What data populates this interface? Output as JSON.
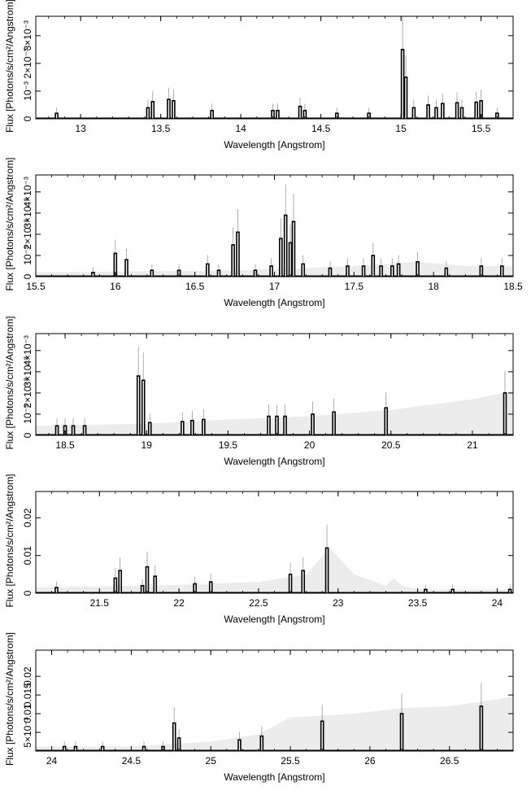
{
  "chart_data": [
    {
      "type": "line",
      "xlabel": "Wavelength [Angstrom]",
      "ylabel": "Flux [Photons/s/cm²/Angstrom]",
      "xlim": [
        12.72,
        15.7
      ],
      "ylim": [
        0,
        0.0037
      ],
      "x_ticks": [
        {
          "value": 13,
          "label": "13"
        },
        {
          "value": 13.5,
          "label": "13.5"
        },
        {
          "value": 14,
          "label": "14"
        },
        {
          "value": 14.5,
          "label": "14.5"
        },
        {
          "value": 15,
          "label": "15"
        },
        {
          "value": 15.5,
          "label": "15.5"
        }
      ],
      "y_ticks": [
        {
          "value": 0,
          "label": "0"
        },
        {
          "value": 0.001,
          "label": "10⁻³"
        },
        {
          "value": 0.002,
          "label": "2×10⁻³"
        },
        {
          "value": 0.003,
          "label": "3×10⁻³"
        }
      ],
      "band": {
        "x": [
          12.72,
          15.7
        ],
        "y": [
          5e-05,
          5e-05
        ]
      },
      "peaks": [
        {
          "x": 12.85,
          "y": 0.0002
        },
        {
          "x": 13.42,
          "y": 0.0004
        },
        {
          "x": 13.45,
          "y": 0.00062
        },
        {
          "x": 13.55,
          "y": 0.0007
        },
        {
          "x": 13.58,
          "y": 0.00065
        },
        {
          "x": 13.82,
          "y": 0.0003
        },
        {
          "x": 14.2,
          "y": 0.0003
        },
        {
          "x": 14.23,
          "y": 0.0003
        },
        {
          "x": 14.37,
          "y": 0.00045
        },
        {
          "x": 14.4,
          "y": 0.0003
        },
        {
          "x": 14.6,
          "y": 0.0002
        },
        {
          "x": 14.8,
          "y": 0.0002
        },
        {
          "x": 15.01,
          "y": 0.0025
        },
        {
          "x": 15.03,
          "y": 0.0015
        },
        {
          "x": 15.08,
          "y": 0.0004
        },
        {
          "x": 15.17,
          "y": 0.0005
        },
        {
          "x": 15.22,
          "y": 0.0004
        },
        {
          "x": 15.26,
          "y": 0.00055
        },
        {
          "x": 15.35,
          "y": 0.00058
        },
        {
          "x": 15.38,
          "y": 0.0004
        },
        {
          "x": 15.47,
          "y": 0.0006
        },
        {
          "x": 15.5,
          "y": 0.00065
        },
        {
          "x": 15.6,
          "y": 0.0002
        }
      ]
    },
    {
      "type": "line",
      "xlabel": "Wavelength [Angstrom]",
      "ylabel": "Flux [Photons/s/cm²/Angstrom]",
      "xlim": [
        15.5,
        18.5
      ],
      "ylim": [
        0,
        0.0048
      ],
      "x_ticks": [
        {
          "value": 15.5,
          "label": "15.5"
        },
        {
          "value": 16,
          "label": "16"
        },
        {
          "value": 16.5,
          "label": "16.5"
        },
        {
          "value": 17,
          "label": "17"
        },
        {
          "value": 17.5,
          "label": "17.5"
        },
        {
          "value": 18,
          "label": "18"
        },
        {
          "value": 18.5,
          "label": "18.5"
        }
      ],
      "y_ticks": [
        {
          "value": 0,
          "label": "0"
        },
        {
          "value": 0.001,
          "label": "10⁻³"
        },
        {
          "value": 0.002,
          "label": "2×10⁻³"
        },
        {
          "value": 0.003,
          "label": "3×10⁻³"
        },
        {
          "value": 0.004,
          "label": "4×10⁻³"
        }
      ],
      "band": {
        "x": [
          15.5,
          16.8,
          17.5,
          17.9,
          18.2,
          18.5
        ],
        "y": [
          0.0002,
          0.0003,
          0.0005,
          0.0007,
          0.0005,
          0.0005
        ]
      },
      "peaks": [
        {
          "x": 15.86,
          "y": 0.0002
        },
        {
          "x": 16.0,
          "y": 0.0011
        },
        {
          "x": 16.07,
          "y": 0.0008
        },
        {
          "x": 16.23,
          "y": 0.0003
        },
        {
          "x": 16.4,
          "y": 0.0003
        },
        {
          "x": 16.58,
          "y": 0.0006
        },
        {
          "x": 16.65,
          "y": 0.0003
        },
        {
          "x": 16.74,
          "y": 0.0015
        },
        {
          "x": 16.77,
          "y": 0.0021
        },
        {
          "x": 16.88,
          "y": 0.0003
        },
        {
          "x": 16.98,
          "y": 0.0005
        },
        {
          "x": 17.04,
          "y": 0.0018
        },
        {
          "x": 17.07,
          "y": 0.0029
        },
        {
          "x": 17.1,
          "y": 0.0016
        },
        {
          "x": 17.12,
          "y": 0.0026
        },
        {
          "x": 17.18,
          "y": 0.0006
        },
        {
          "x": 17.35,
          "y": 0.0004
        },
        {
          "x": 17.46,
          "y": 0.0005
        },
        {
          "x": 17.56,
          "y": 0.0005
        },
        {
          "x": 17.62,
          "y": 0.001
        },
        {
          "x": 17.67,
          "y": 0.0005
        },
        {
          "x": 17.74,
          "y": 0.0005
        },
        {
          "x": 17.78,
          "y": 0.0006
        },
        {
          "x": 17.9,
          "y": 0.0007
        },
        {
          "x": 18.08,
          "y": 0.0004
        },
        {
          "x": 18.3,
          "y": 0.0005
        },
        {
          "x": 18.43,
          "y": 0.0005
        }
      ]
    },
    {
      "type": "line",
      "xlabel": "Wavelength [Angstrom]",
      "ylabel": "Flux [Photons/s/cm²/Angstrom]",
      "xlim": [
        18.32,
        21.25
      ],
      "ylim": [
        0,
        0.0048
      ],
      "x_ticks": [
        {
          "value": 18.5,
          "label": "18.5"
        },
        {
          "value": 19,
          "label": "19"
        },
        {
          "value": 19.5,
          "label": "19.5"
        },
        {
          "value": 20,
          "label": "20"
        },
        {
          "value": 20.5,
          "label": "20.5"
        },
        {
          "value": 21,
          "label": "21"
        }
      ],
      "y_ticks": [
        {
          "value": 0,
          "label": "0"
        },
        {
          "value": 0.001,
          "label": "10⁻³"
        },
        {
          "value": 0.002,
          "label": "2×10⁻³"
        },
        {
          "value": 0.003,
          "label": "3×10⁻³"
        },
        {
          "value": 0.004,
          "label": "4×10⁻³"
        }
      ],
      "band": {
        "x": [
          18.32,
          19.0,
          19.5,
          20.0,
          20.5,
          21.0,
          21.25
        ],
        "y": [
          0.00045,
          0.00055,
          0.00075,
          0.0009,
          0.0012,
          0.0017,
          0.0021
        ]
      },
      "peaks": [
        {
          "x": 18.45,
          "y": 0.00045
        },
        {
          "x": 18.5,
          "y": 0.00045
        },
        {
          "x": 18.55,
          "y": 0.00045
        },
        {
          "x": 18.62,
          "y": 0.00045
        },
        {
          "x": 18.95,
          "y": 0.0028
        },
        {
          "x": 18.98,
          "y": 0.0026
        },
        {
          "x": 19.02,
          "y": 0.0006
        },
        {
          "x": 19.22,
          "y": 0.00065
        },
        {
          "x": 19.28,
          "y": 0.0007
        },
        {
          "x": 19.35,
          "y": 0.00075
        },
        {
          "x": 19.75,
          "y": 0.0009
        },
        {
          "x": 19.8,
          "y": 0.0009
        },
        {
          "x": 19.85,
          "y": 0.0009
        },
        {
          "x": 20.02,
          "y": 0.001
        },
        {
          "x": 20.15,
          "y": 0.0011
        },
        {
          "x": 20.47,
          "y": 0.0013
        },
        {
          "x": 21.2,
          "y": 0.002
        }
      ]
    },
    {
      "type": "line",
      "xlabel": "Wavelength [Angstrom]",
      "ylabel": "Flux [Photons/s/cm²/Angstrom]",
      "xlim": [
        21.1,
        24.1
      ],
      "ylim": [
        0,
        0.027
      ],
      "x_ticks": [
        {
          "value": 21.5,
          "label": "21.5"
        },
        {
          "value": 22,
          "label": "22"
        },
        {
          "value": 22.5,
          "label": "22.5"
        },
        {
          "value": 23,
          "label": "23"
        },
        {
          "value": 23.5,
          "label": "23.5"
        },
        {
          "value": 24,
          "label": "24"
        }
      ],
      "y_ticks": [
        {
          "value": 0,
          "label": "0"
        },
        {
          "value": 0.01,
          "label": "0.01"
        },
        {
          "value": 0.02,
          "label": "0.02"
        }
      ],
      "band": {
        "x": [
          21.1,
          22.0,
          22.5,
          22.8,
          22.95,
          23.1,
          23.3,
          23.35,
          23.4,
          23.5,
          24.1
        ],
        "y": [
          0.0015,
          0.0022,
          0.003,
          0.005,
          0.012,
          0.005,
          0.002,
          0.004,
          0.002,
          0.001,
          0.001
        ]
      },
      "peaks": [
        {
          "x": 21.23,
          "y": 0.0015
        },
        {
          "x": 21.6,
          "y": 0.004
        },
        {
          "x": 21.63,
          "y": 0.006
        },
        {
          "x": 21.77,
          "y": 0.002
        },
        {
          "x": 21.8,
          "y": 0.007
        },
        {
          "x": 21.85,
          "y": 0.0045
        },
        {
          "x": 22.1,
          "y": 0.0025
        },
        {
          "x": 22.2,
          "y": 0.003
        },
        {
          "x": 22.7,
          "y": 0.005
        },
        {
          "x": 22.78,
          "y": 0.006
        },
        {
          "x": 22.93,
          "y": 0.012
        },
        {
          "x": 23.55,
          "y": 0.001
        },
        {
          "x": 23.72,
          "y": 0.001
        },
        {
          "x": 24.08,
          "y": 0.001
        }
      ]
    },
    {
      "type": "line",
      "xlabel": "Wavelength [Angstrom]",
      "ylabel": "Flux [Photons/s/cm²/Angstrom]",
      "xlim": [
        23.9,
        26.9
      ],
      "ylim": [
        0,
        0.027
      ],
      "x_ticks": [
        {
          "value": 24,
          "label": "24"
        },
        {
          "value": 24.5,
          "label": "24.5"
        },
        {
          "value": 25,
          "label": "25"
        },
        {
          "value": 25.5,
          "label": "25.5"
        },
        {
          "value": 26,
          "label": "26"
        },
        {
          "value": 26.5,
          "label": "26.5"
        }
      ],
      "y_ticks": [
        {
          "value": 0.005,
          "label": "5×10⁻³"
        },
        {
          "value": 0.01,
          "label": "0.01"
        },
        {
          "value": 0.015,
          "label": "0.015"
        },
        {
          "value": 0.02,
          "label": "0.02"
        }
      ],
      "band": {
        "x": [
          23.9,
          24.5,
          24.8,
          25.0,
          25.3,
          25.5,
          25.7,
          25.9,
          26.2,
          26.5,
          26.9
        ],
        "y": [
          0.0012,
          0.0012,
          0.002,
          0.0025,
          0.0045,
          0.009,
          0.0095,
          0.01,
          0.0115,
          0.012,
          0.0145
        ]
      },
      "peaks": [
        {
          "x": 24.08,
          "y": 0.0012
        },
        {
          "x": 24.15,
          "y": 0.0012
        },
        {
          "x": 24.32,
          "y": 0.0012
        },
        {
          "x": 24.58,
          "y": 0.0012
        },
        {
          "x": 24.7,
          "y": 0.0012
        },
        {
          "x": 24.77,
          "y": 0.0075
        },
        {
          "x": 24.8,
          "y": 0.0035
        },
        {
          "x": 25.18,
          "y": 0.003
        },
        {
          "x": 25.32,
          "y": 0.004
        },
        {
          "x": 25.7,
          "y": 0.008
        },
        {
          "x": 26.2,
          "y": 0.01
        },
        {
          "x": 26.7,
          "y": 0.012
        }
      ]
    }
  ]
}
